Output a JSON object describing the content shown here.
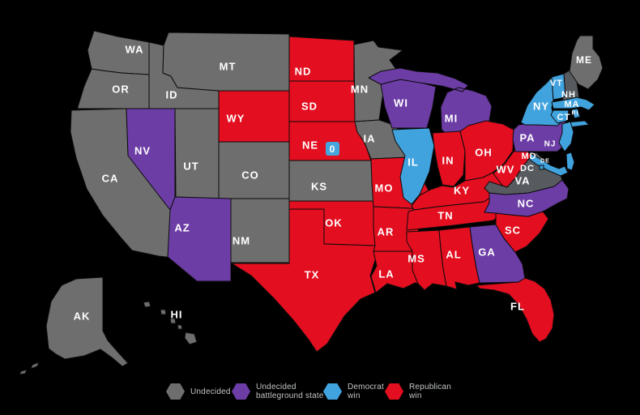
{
  "canvas": {
    "background": "#000000"
  },
  "legend": {
    "text_color": "#c2c5c7",
    "items": [
      {
        "label": "Undecided",
        "status": "undecided"
      },
      {
        "label": "Undecided battleground state",
        "status": "undecided_battleground"
      },
      {
        "label": "Democrat win",
        "status": "democrat"
      },
      {
        "label": "Republican win",
        "status": "republican"
      }
    ]
  },
  "map": {
    "status_colors": {
      "undecided": "#6e6e6e",
      "undecided_shaded": "#575b60",
      "undecided_battleground": "#6d3da6",
      "democrat": "#41a3de",
      "republican": "#e30e1f"
    },
    "ne_district_badge": {
      "value": "0",
      "fill": "#45a5dc",
      "text_color": "#ffffff"
    },
    "states": [
      {
        "id": "WA",
        "label": "WA",
        "status": "undecided"
      },
      {
        "id": "OR",
        "label": "OR",
        "status": "undecided"
      },
      {
        "id": "CA",
        "label": "CA",
        "status": "undecided"
      },
      {
        "id": "NV",
        "label": "NV",
        "status": "undecided_battleground"
      },
      {
        "id": "ID",
        "label": "ID",
        "status": "undecided"
      },
      {
        "id": "MT",
        "label": "MT",
        "status": "undecided"
      },
      {
        "id": "WY",
        "label": "WY",
        "status": "republican"
      },
      {
        "id": "UT",
        "label": "UT",
        "status": "undecided"
      },
      {
        "id": "CO",
        "label": "CO",
        "status": "undecided"
      },
      {
        "id": "AZ",
        "label": "AZ",
        "status": "undecided_battleground"
      },
      {
        "id": "NM",
        "label": "NM",
        "status": "undecided"
      },
      {
        "id": "ND",
        "label": "ND",
        "status": "republican"
      },
      {
        "id": "SD",
        "label": "SD",
        "status": "republican"
      },
      {
        "id": "NE",
        "label": "NE",
        "status": "republican"
      },
      {
        "id": "KS",
        "label": "KS",
        "status": "undecided"
      },
      {
        "id": "OK",
        "label": "OK",
        "status": "republican"
      },
      {
        "id": "TX",
        "label": "TX",
        "status": "republican"
      },
      {
        "id": "MN",
        "label": "MN",
        "status": "undecided"
      },
      {
        "id": "IA",
        "label": "IA",
        "status": "undecided"
      },
      {
        "id": "MO",
        "label": "MO",
        "status": "republican"
      },
      {
        "id": "AR",
        "label": "AR",
        "status": "republican"
      },
      {
        "id": "LA",
        "label": "LA",
        "status": "republican"
      },
      {
        "id": "WI",
        "label": "WI",
        "status": "undecided_battleground"
      },
      {
        "id": "IL",
        "label": "IL",
        "status": "democrat"
      },
      {
        "id": "MI",
        "label": "MI",
        "status": "undecided_battleground"
      },
      {
        "id": "IN",
        "label": "IN",
        "status": "republican"
      },
      {
        "id": "OH",
        "label": "OH",
        "status": "republican"
      },
      {
        "id": "KY",
        "label": "KY",
        "status": "republican"
      },
      {
        "id": "TN",
        "label": "TN",
        "status": "republican"
      },
      {
        "id": "MS",
        "label": "MS",
        "status": "republican"
      },
      {
        "id": "AL",
        "label": "AL",
        "status": "republican"
      },
      {
        "id": "GA",
        "label": "GA",
        "status": "undecided_battleground"
      },
      {
        "id": "FL",
        "label": "FL",
        "status": "republican"
      },
      {
        "id": "SC",
        "label": "SC",
        "status": "republican"
      },
      {
        "id": "NC",
        "label": "NC",
        "status": "undecided_battleground"
      },
      {
        "id": "VA",
        "label": "VA",
        "status": "undecided",
        "variant": "undecided_shaded"
      },
      {
        "id": "WV",
        "label": "WV",
        "status": "republican"
      },
      {
        "id": "PA",
        "label": "PA",
        "status": "undecided_battleground"
      },
      {
        "id": "NY",
        "label": "NY",
        "status": "democrat"
      },
      {
        "id": "NJ",
        "label": "NJ",
        "status": "democrat"
      },
      {
        "id": "MD",
        "label": "MD",
        "status": "democrat"
      },
      {
        "id": "DE",
        "label": "DE",
        "status": "democrat"
      },
      {
        "id": "DC",
        "label": "DC",
        "status": "democrat"
      },
      {
        "id": "VT",
        "label": "VT",
        "status": "democrat"
      },
      {
        "id": "NH",
        "label": "NH",
        "status": "undecided",
        "variant": "undecided_shaded"
      },
      {
        "id": "MA",
        "label": "MA",
        "status": "democrat"
      },
      {
        "id": "CT",
        "label": "CT",
        "status": "democrat"
      },
      {
        "id": "RI",
        "label": "RI",
        "status": "democrat"
      },
      {
        "id": "ME",
        "label": "ME",
        "status": "undecided"
      },
      {
        "id": "AK",
        "label": "AK",
        "status": "undecided"
      },
      {
        "id": "HI",
        "label": "HI",
        "status": "undecided"
      }
    ]
  }
}
